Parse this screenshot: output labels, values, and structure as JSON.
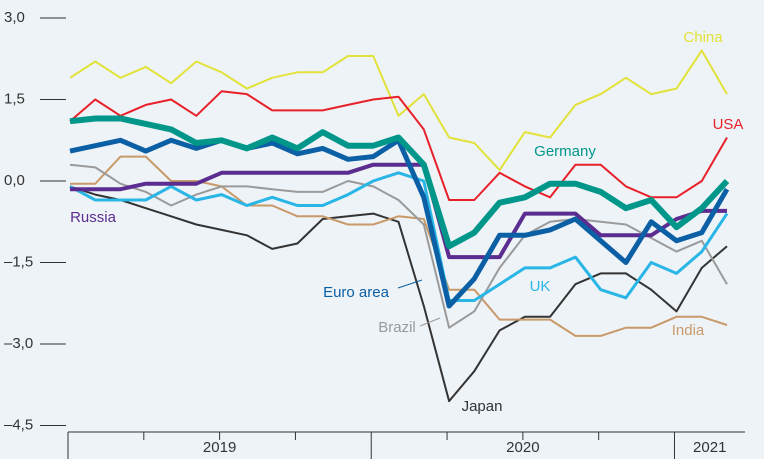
{
  "chart_data": {
    "type": "line",
    "categories": [
      null,
      null,
      null,
      null,
      null,
      null,
      null,
      null,
      null,
      null,
      null,
      null,
      null,
      null,
      null,
      null,
      null,
      null,
      null,
      null,
      null,
      null,
      null,
      null,
      null,
      null,
      null
    ],
    "x_groups": [
      {
        "label": "2019",
        "count": 12
      },
      {
        "label": "2020",
        "count": 12
      },
      {
        "label": "2021",
        "count": 3
      }
    ],
    "ylim": [
      -4.5,
      3
    ],
    "yticks": [
      {
        "value": -4.5,
        "label": "–4,5"
      },
      {
        "value": -3,
        "label": "–3,0"
      },
      {
        "value": -1.5,
        "label": "–1,5"
      },
      {
        "value": 0,
        "label": "0,0"
      },
      {
        "value": 1.5,
        "label": "1,5"
      },
      {
        "value": 3,
        "label": "3,0"
      }
    ],
    "series": [
      {
        "name": "Japan",
        "color": "#333333",
        "width": 2,
        "values": [
          -0.1,
          -0.25,
          -0.35,
          -0.5,
          -0.65,
          -0.8,
          -0.9,
          -1.0,
          -1.25,
          -1.15,
          -0.7,
          -0.65,
          -0.6,
          -0.75,
          -2.3,
          -4.05,
          -3.5,
          -2.75,
          -2.5,
          -2.5,
          -1.9,
          -1.7,
          -1.7,
          -2.0,
          -2.4,
          -1.6,
          -1.2
        ]
      },
      {
        "name": "India",
        "color": "#c89a6a",
        "width": 2,
        "values": [
          -0.05,
          -0.05,
          0.45,
          0.45,
          0.0,
          0.0,
          -0.1,
          -0.45,
          -0.45,
          -0.65,
          -0.65,
          -0.8,
          -0.8,
          -0.65,
          -0.7,
          -2.0,
          -2.0,
          -2.55,
          -2.55,
          -2.55,
          -2.85,
          -2.85,
          -2.7,
          -2.7,
          -2.5,
          -2.5,
          -2.65
        ]
      },
      {
        "name": "Brazil",
        "color": "#9a9a9a",
        "width": 2,
        "values": [
          0.3,
          0.25,
          -0.05,
          -0.2,
          -0.45,
          -0.25,
          -0.1,
          -0.1,
          -0.15,
          -0.2,
          -0.2,
          0.0,
          -0.1,
          -0.35,
          -0.8,
          -2.7,
          -2.4,
          -1.6,
          -1.0,
          -0.75,
          -0.7,
          -0.75,
          -0.8,
          -1.05,
          -1.3,
          -1.1,
          -1.9
        ]
      },
      {
        "name": "UK",
        "color": "#29b6e6",
        "width": 3,
        "values": [
          -0.1,
          -0.35,
          -0.35,
          -0.35,
          -0.1,
          -0.35,
          -0.25,
          -0.45,
          -0.3,
          -0.45,
          -0.45,
          -0.25,
          0.0,
          0.15,
          0.0,
          -2.2,
          -2.2,
          -1.9,
          -1.6,
          -1.6,
          -1.4,
          -2.0,
          -2.15,
          -1.5,
          -1.7,
          -1.3,
          -0.6
        ]
      },
      {
        "name": "China",
        "color": "#e2e23a",
        "width": 2,
        "values": [
          1.9,
          2.2,
          1.9,
          2.1,
          1.8,
          2.2,
          2.0,
          1.7,
          1.9,
          2.0,
          2.0,
          2.3,
          2.3,
          1.2,
          1.6,
          0.8,
          0.7,
          0.2,
          0.9,
          0.8,
          1.4,
          1.6,
          1.9,
          1.6,
          1.7,
          2.4,
          1.6
        ]
      },
      {
        "name": "USA",
        "color": "#e8202a",
        "width": 2,
        "values": [
          1.1,
          1.5,
          1.2,
          1.4,
          1.5,
          1.2,
          1.65,
          1.6,
          1.3,
          1.3,
          1.3,
          1.4,
          1.5,
          1.55,
          0.95,
          -0.35,
          -0.35,
          0.15,
          -0.1,
          -0.3,
          0.3,
          0.3,
          -0.1,
          -0.3,
          -0.3,
          0.0,
          0.8
        ]
      },
      {
        "name": "Russia",
        "color": "#5b2d90",
        "width": 4,
        "values": [
          -0.15,
          -0.15,
          -0.15,
          -0.05,
          -0.05,
          -0.05,
          0.15,
          0.15,
          0.15,
          0.15,
          0.15,
          0.15,
          0.3,
          0.3,
          0.3,
          -1.4,
          -1.4,
          -1.4,
          -0.6,
          -0.6,
          -0.6,
          -1.0,
          -1.0,
          -1.0,
          -0.7,
          -0.55,
          -0.55
        ]
      },
      {
        "name": "Euro area",
        "color": "#0b5fa5",
        "width": 5,
        "values": [
          0.55,
          0.65,
          0.75,
          0.55,
          0.75,
          0.6,
          0.75,
          0.6,
          0.7,
          0.5,
          0.6,
          0.4,
          0.45,
          0.75,
          -0.3,
          -2.3,
          -1.8,
          -1.0,
          -1.0,
          -0.9,
          -0.7,
          -1.1,
          -1.5,
          -0.75,
          -1.1,
          -0.95,
          -0.15
        ]
      },
      {
        "name": "Germany",
        "color": "#00978a",
        "width": 6,
        "values": [
          1.1,
          1.15,
          1.15,
          1.05,
          0.95,
          0.7,
          0.75,
          0.6,
          0.8,
          0.6,
          0.9,
          0.65,
          0.65,
          0.8,
          0.3,
          -1.2,
          -0.95,
          -0.4,
          -0.3,
          -0.05,
          -0.05,
          -0.2,
          -0.5,
          -0.35,
          -0.85,
          -0.5,
          0.0
        ]
      }
    ]
  }
}
